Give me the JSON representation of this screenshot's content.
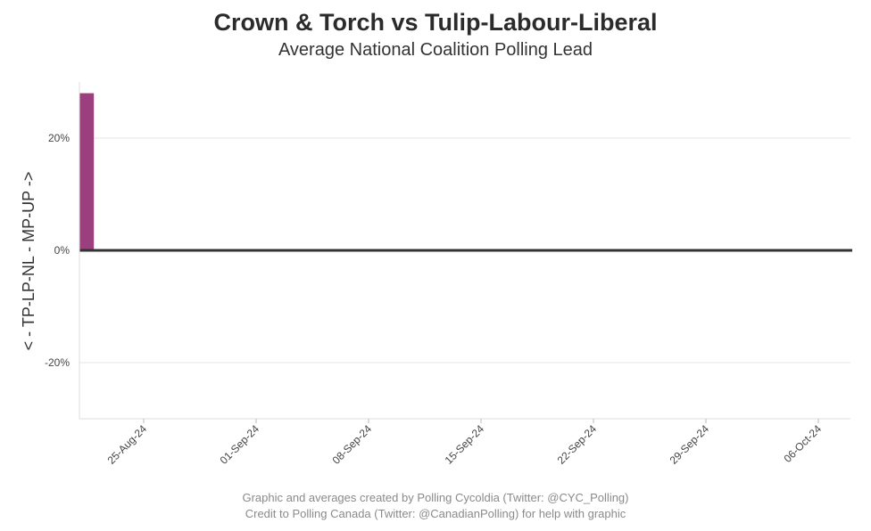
{
  "chart_data": {
    "type": "bar",
    "title": "Crown & Torch vs Tulip-Labour-Liberal",
    "subtitle": "Average National Coalition Polling Lead",
    "ylabel": "< - TP-LP-NL - MP-UP ->",
    "xlabel": "",
    "x_start": "2024-08-21",
    "x_end": "2024-10-08",
    "ylim": [
      -30,
      30
    ],
    "yticks": [
      {
        "value": 20,
        "label": "20%"
      },
      {
        "value": 0,
        "label": "0%"
      },
      {
        "value": -20,
        "label": "-20%"
      }
    ],
    "xticks": [
      {
        "date": "2024-08-25",
        "label": "25-Aug-24"
      },
      {
        "date": "2024-09-01",
        "label": "01-Sep-24"
      },
      {
        "date": "2024-09-08",
        "label": "08-Sep-24"
      },
      {
        "date": "2024-09-15",
        "label": "15-Sep-24"
      },
      {
        "date": "2024-09-22",
        "label": "22-Sep-24"
      },
      {
        "date": "2024-09-29",
        "label": "29-Sep-24"
      },
      {
        "date": "2024-10-06",
        "label": "06-Oct-24"
      }
    ],
    "bars": [
      {
        "date": "2024-08-21",
        "value": 28,
        "color": "#9b3f7e"
      }
    ],
    "grid": true,
    "zero_line_color": "#333333"
  },
  "footer": {
    "line1": "Graphic and averages created by Polling Cycoldia (Twitter: @CYC_Polling)",
    "line2": "Credit to Polling Canada (Twitter: @CanadianPolling) for help with graphic"
  }
}
